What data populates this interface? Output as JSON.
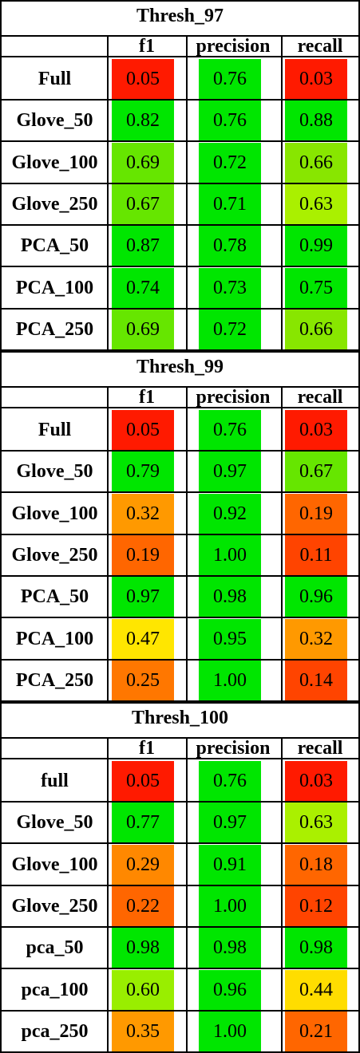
{
  "columns": [
    "f1",
    "precision",
    "recall"
  ],
  "sections": [
    {
      "title": "Thresh_97",
      "rows": [
        {
          "label": "Full",
          "values": [
            "0.05",
            "0.76",
            "0.03"
          ],
          "colors": [
            "#ff1a00",
            "#00e600",
            "#ff1a00"
          ]
        },
        {
          "label": "Glove_50",
          "values": [
            "0.82",
            "0.76",
            "0.88"
          ],
          "colors": [
            "#00e600",
            "#00e600",
            "#00e600"
          ]
        },
        {
          "label": "Glove_100",
          "values": [
            "0.69",
            "0.72",
            "0.66"
          ],
          "colors": [
            "#66e600",
            "#00e600",
            "#88e600"
          ]
        },
        {
          "label": "Glove_250",
          "values": [
            "0.67",
            "0.71",
            "0.63"
          ],
          "colors": [
            "#66e600",
            "#00e600",
            "#aaf000"
          ]
        },
        {
          "label": "PCA_50",
          "values": [
            "0.87",
            "0.78",
            "0.99"
          ],
          "colors": [
            "#00e600",
            "#00e600",
            "#00e600"
          ]
        },
        {
          "label": "PCA_100",
          "values": [
            "0.74",
            "0.73",
            "0.75"
          ],
          "colors": [
            "#00e600",
            "#00e600",
            "#00e600"
          ]
        },
        {
          "label": "PCA_250",
          "values": [
            "0.69",
            "0.72",
            "0.66"
          ],
          "colors": [
            "#66e600",
            "#00e600",
            "#88e600"
          ]
        }
      ]
    },
    {
      "title": "Thresh_99",
      "rows": [
        {
          "label": "Full",
          "values": [
            "0.05",
            "0.76",
            "0.03"
          ],
          "colors": [
            "#ff1a00",
            "#00e600",
            "#ff1a00"
          ]
        },
        {
          "label": "Glove_50",
          "values": [
            "0.79",
            "0.97",
            "0.67"
          ],
          "colors": [
            "#00e600",
            "#00e600",
            "#66e600"
          ]
        },
        {
          "label": "Glove_100",
          "values": [
            "0.32",
            "0.92",
            "0.19"
          ],
          "colors": [
            "#ff9900",
            "#00e600",
            "#ff6600"
          ]
        },
        {
          "label": "Glove_250",
          "values": [
            "0.19",
            "1.00",
            "0.11"
          ],
          "colors": [
            "#ff6600",
            "#00e600",
            "#ff4400"
          ]
        },
        {
          "label": "PCA_50",
          "values": [
            "0.97",
            "0.98",
            "0.96"
          ],
          "colors": [
            "#00e600",
            "#00e600",
            "#00e600"
          ]
        },
        {
          "label": "PCA_100",
          "values": [
            "0.47",
            "0.95",
            "0.32"
          ],
          "colors": [
            "#ffe600",
            "#00e600",
            "#ff9900"
          ]
        },
        {
          "label": "PCA_250",
          "values": [
            "0.25",
            "1.00",
            "0.14"
          ],
          "colors": [
            "#ff7700",
            "#00e600",
            "#ff4400"
          ]
        }
      ]
    },
    {
      "title": "Thresh_100",
      "rows": [
        {
          "label": "full",
          "values": [
            "0.05",
            "0.76",
            "0.03"
          ],
          "colors": [
            "#ff1a00",
            "#00e600",
            "#ff1a00"
          ]
        },
        {
          "label": "Glove_50",
          "values": [
            "0.77",
            "0.97",
            "0.63"
          ],
          "colors": [
            "#00e600",
            "#00e600",
            "#aaf000"
          ]
        },
        {
          "label": "Glove_100",
          "values": [
            "0.29",
            "0.91",
            "0.18"
          ],
          "colors": [
            "#ff8800",
            "#00e600",
            "#ff6600"
          ]
        },
        {
          "label": "Glove_250",
          "values": [
            "0.22",
            "1.00",
            "0.12"
          ],
          "colors": [
            "#ff6600",
            "#00e600",
            "#ff4400"
          ]
        },
        {
          "label": "pca_50",
          "values": [
            "0.98",
            "0.98",
            "0.98"
          ],
          "colors": [
            "#00e600",
            "#00e600",
            "#00e600"
          ]
        },
        {
          "label": "pca_100",
          "values": [
            "0.60",
            "0.96",
            "0.44"
          ],
          "colors": [
            "#99ee00",
            "#00e600",
            "#ffdd00"
          ]
        },
        {
          "label": "pca_250",
          "values": [
            "0.35",
            "1.00",
            "0.21"
          ],
          "colors": [
            "#ff9900",
            "#00e600",
            "#ff6600"
          ]
        }
      ]
    }
  ]
}
